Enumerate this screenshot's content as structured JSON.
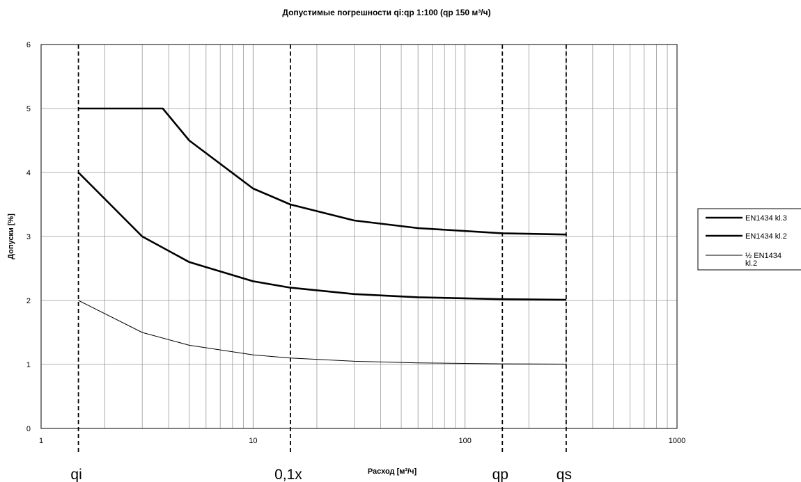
{
  "chart_data": {
    "type": "line",
    "title": "Допустимые погрешности qi:qp 1:100 (qp 150 м³/ч)",
    "xlabel": "Расход [м³/ч]",
    "ylabel": "Допуски [%]",
    "x_scale": "log",
    "xlim": [
      1,
      1000
    ],
    "ylim": [
      0,
      6
    ],
    "x_ticks": [
      "1",
      "10",
      "100",
      "1000"
    ],
    "y_ticks": [
      "0",
      "1",
      "2",
      "3",
      "4",
      "5",
      "6"
    ],
    "grid": true,
    "legend_position": "right",
    "markers": [
      {
        "label": "qi",
        "x": 1.5
      },
      {
        "label": "0,1x",
        "x": 15
      },
      {
        "label": "qp",
        "x": 150
      },
      {
        "label": "qs",
        "x": 300
      }
    ],
    "series": [
      {
        "name": "EN1434 kl.3",
        "style": "thick",
        "x": [
          1.5,
          3.75,
          5,
          10,
          15,
          30,
          60,
          150,
          300
        ],
        "y": [
          5.0,
          5.0,
          4.5,
          3.75,
          3.5,
          3.25,
          3.13,
          3.05,
          3.03
        ]
      },
      {
        "name": "EN1434 kl.2",
        "style": "thick",
        "x": [
          1.5,
          3,
          5,
          10,
          15,
          30,
          60,
          150,
          300
        ],
        "y": [
          4.0,
          3.0,
          2.6,
          2.3,
          2.2,
          2.1,
          2.05,
          2.02,
          2.01
        ]
      },
      {
        "name": "½ EN1434 kl.2",
        "style": "thin",
        "x": [
          1.5,
          3,
          5,
          10,
          15,
          30,
          60,
          150,
          300
        ],
        "y": [
          2.0,
          1.5,
          1.3,
          1.15,
          1.1,
          1.05,
          1.025,
          1.01,
          1.005
        ]
      }
    ]
  }
}
